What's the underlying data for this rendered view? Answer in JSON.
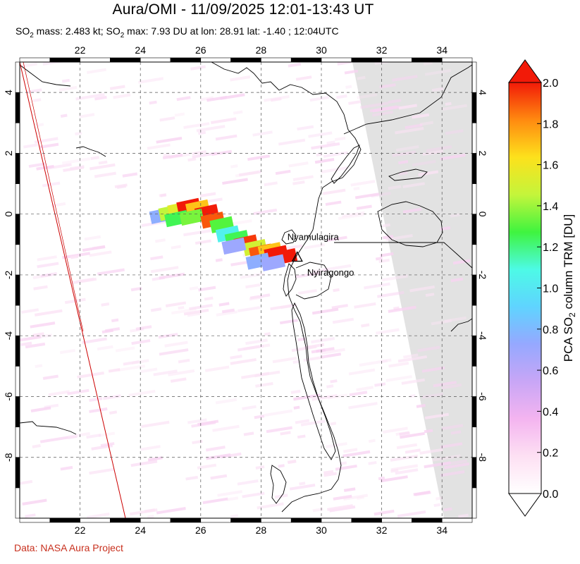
{
  "title": "Aura/OMI - 11/09/2025 12:01-13:43 UT",
  "subtitle": {
    "prefix1": "SO",
    "sub1": "2",
    "mass_text": " mass: 2.483 kt; SO",
    "sub2": "2",
    "max_text": " max: 7.93 DU at lon: 28.91 lat: -1.40 ; 12:04UTC"
  },
  "credit": "Data: NASA Aura Project",
  "map": {
    "lon_range": [
      20,
      35
    ],
    "lat_range": [
      -10,
      5
    ],
    "lon_ticks": [
      22,
      24,
      26,
      28,
      30,
      32,
      34
    ],
    "lat_ticks": [
      4,
      2,
      0,
      -2,
      -4,
      -6,
      -8
    ],
    "lon_tick_labels": [
      "22",
      "24",
      "26",
      "28",
      "30",
      "32",
      "34"
    ],
    "lat_tick_labels": [
      "4",
      "2",
      "0",
      "-2",
      "-4",
      "-6",
      "-8"
    ],
    "grid": true,
    "no_data_color": "#e2e2e2",
    "coastline_color": "#000000",
    "orbit_edge_color": "#cc0000"
  },
  "volcanoes": [
    {
      "name": "Nyamulagira",
      "lon": 29.2,
      "lat": -1.41
    },
    {
      "name": "Nyiragongo",
      "lon": 29.25,
      "lat": -1.52
    }
  ],
  "colorbar": {
    "title": "PCA SO",
    "title_sub": "2",
    "title_rest": " column TRM [DU]",
    "min": 0.0,
    "max": 2.0,
    "tick_values": [
      0.0,
      0.2,
      0.4,
      0.6,
      0.8,
      1.0,
      1.2,
      1.4,
      1.6,
      1.8,
      2.0
    ],
    "tick_labels": [
      "0.0",
      "0.2",
      "0.4",
      "0.6",
      "0.8",
      "1.0",
      "1.2",
      "1.4",
      "1.6",
      "1.8",
      "2.0"
    ],
    "colors": [
      "#ffffff",
      "#fde0f3",
      "#f4b4f0",
      "#c8a6f6",
      "#95a8ff",
      "#5fd4ff",
      "#4dfae6",
      "#3ff43f",
      "#c4f53b",
      "#fde11c",
      "#ff8a10",
      "#f21a08"
    ]
  },
  "plume_cells": [
    {
      "lon": 24.7,
      "lat": -0.05,
      "v": 0.75
    },
    {
      "lon": 25.0,
      "lat": 0.05,
      "v": 1.45
    },
    {
      "lon": 25.3,
      "lat": 0.15,
      "v": 1.55
    },
    {
      "lon": 25.6,
      "lat": 0.25,
      "v": 2.0
    },
    {
      "lon": 25.9,
      "lat": 0.2,
      "v": 1.7
    },
    {
      "lon": 26.2,
      "lat": 0.05,
      "v": 2.0
    },
    {
      "lon": 25.2,
      "lat": -0.15,
      "v": 1.25
    },
    {
      "lon": 25.7,
      "lat": -0.1,
      "v": 1.35
    },
    {
      "lon": 26.4,
      "lat": -0.2,
      "v": 1.9
    },
    {
      "lon": 26.7,
      "lat": -0.35,
      "v": 1.3
    },
    {
      "lon": 26.9,
      "lat": -0.65,
      "v": 1.05
    },
    {
      "lon": 27.2,
      "lat": -0.8,
      "v": 1.25
    },
    {
      "lon": 27.5,
      "lat": -0.95,
      "v": 1.95
    },
    {
      "lon": 27.8,
      "lat": -1.1,
      "v": 1.5
    },
    {
      "lon": 28.0,
      "lat": -1.25,
      "v": 1.9
    },
    {
      "lon": 28.3,
      "lat": -1.2,
      "v": 1.7
    },
    {
      "lon": 28.5,
      "lat": -1.3,
      "v": 2.0
    },
    {
      "lon": 28.8,
      "lat": -1.4,
      "v": 2.0
    },
    {
      "lon": 27.1,
      "lat": -1.05,
      "v": 0.7
    },
    {
      "lon": 27.9,
      "lat": -1.55,
      "v": 0.75
    },
    {
      "lon": 28.4,
      "lat": -1.6,
      "v": 0.7
    }
  ]
}
